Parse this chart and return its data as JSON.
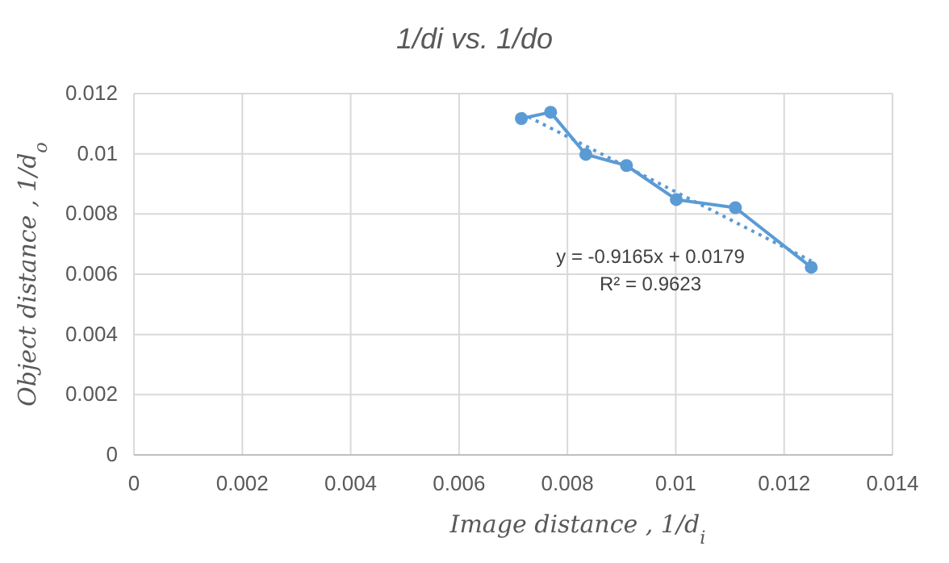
{
  "chart_data": {
    "type": "line",
    "title": "1/di vs. 1/do",
    "xlabel": "Image distance , 1/d$_{i}$",
    "ylabel": "Object distance , 1/d$_{o}$",
    "x": [
      0.00715,
      0.00769,
      0.00834,
      0.00909,
      0.01001,
      0.0111,
      0.0125
    ],
    "series": [
      {
        "color": "#5b9bd5",
        "values": [
          0.01117,
          0.01138,
          0.00998,
          0.00961,
          0.00848,
          0.00821,
          0.00623
        ],
        "marker": "circle",
        "line_style": "solid"
      },
      {
        "color": "#5b9bd5",
        "x": [
          0.00715,
          0.0125
        ],
        "values": [
          0.01135,
          0.00644
        ],
        "marker": "none",
        "line_style": "dotted"
      }
    ],
    "annotations": [
      "y = -0.9165x + 0.0179",
      "R² = 0.9623"
    ],
    "xlim": [
      0,
      0.014
    ],
    "xticks": [
      0,
      0.002,
      0.004,
      0.006,
      0.008,
      0.01,
      0.012,
      0.014
    ],
    "ylim": [
      0,
      0.012
    ],
    "yticks": [
      0,
      0.002,
      0.004,
      0.006,
      0.008,
      0.01,
      0.012
    ],
    "grid": true
  }
}
